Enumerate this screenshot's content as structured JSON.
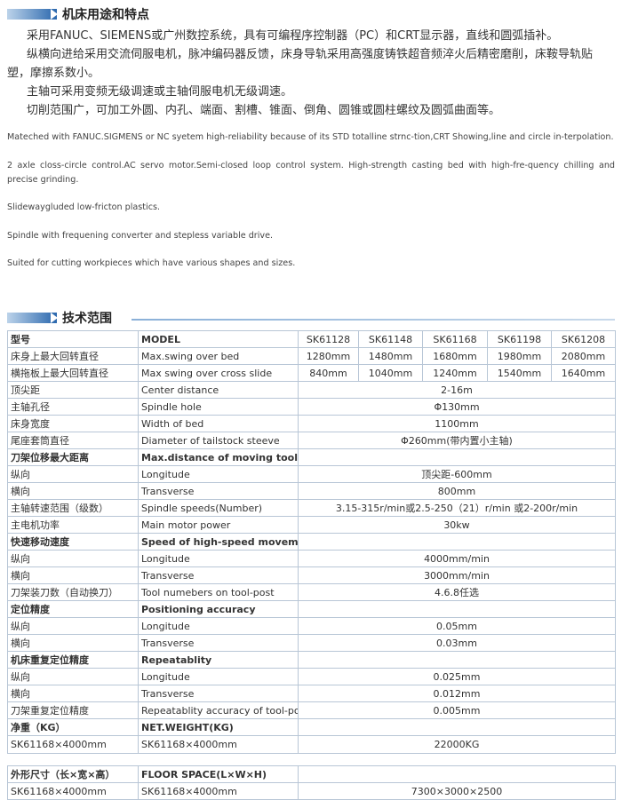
{
  "sections": [
    {
      "title": "机床用途和特点",
      "paragraphs_zh": [
        "采用FANUC、SIEMENS或广州数控系统，具有可编程序控制器（PC）和CRT显示器，直线和圆弧插补。",
        "纵横向进给采用交流伺服电机，脉冲编码器反馈，床身导轨采用高强度铸铁超音频淬火后精密磨削，床鞍导轨贴塑，摩擦系数小。",
        "主轴可采用变频无级调速或主轴伺服电机无级调速。",
        "切削范围广，可加工外圆、内孔、端面、割槽、锥面、倒角、圆锥或圆柱螺纹及圆弧曲面等。"
      ],
      "paragraphs_en": [
        "Mateched with FANUC.SIGMENS or NC syetem high-reliability because of its STD totalline strnc-tion,CRT Showing,line and circle in-terpolation.",
        "2 axle closs-circle control.AC servo motor.Semi-closed loop control system. High-strength casting bed with high-fre-quency chilling and precise grinding.",
        "Slidewaygluded low-fricton plastics.",
        "Spindle with frequening converter and stepless variable drive.",
        "Suited for cutting workpieces which have various shapes and sizes."
      ]
    },
    {
      "title": "技术范围"
    }
  ],
  "spec_table": {
    "rows": [
      {
        "bold": true,
        "cells": [
          "型号",
          "MODEL",
          "SK61128",
          "SK61148",
          "SK61168",
          "SK61198",
          "SK61208"
        ]
      },
      {
        "cells": [
          "床身上最大回转直径",
          "Max.swing over bed",
          "1280mm",
          "1480mm",
          "1680mm",
          "1980mm",
          "2080mm"
        ]
      },
      {
        "cells": [
          "横拖板上最大回转直径",
          "Max swing over cross slide",
          "840mm",
          "1040mm",
          "1240mm",
          "1540mm",
          "1640mm"
        ]
      },
      {
        "cells": [
          "顶尖距",
          "Center distance",
          "2-16m"
        ]
      },
      {
        "cells": [
          "主轴孔径",
          "Spindle hole",
          "Φ130mm"
        ]
      },
      {
        "cells": [
          "床身宽度",
          "Width of bed",
          "1100mm"
        ]
      },
      {
        "cells": [
          "尾座套筒直径",
          "Diameter of tailstock steeve",
          "Φ260mm(带内置小主轴)"
        ]
      },
      {
        "bold": true,
        "cells": [
          "刀架位移最大距离",
          "Max.distance of moving tool-post"
        ]
      },
      {
        "cells": [
          "纵向",
          "Longitude",
          "顶尖距-600mm"
        ]
      },
      {
        "cells": [
          "横向",
          "Transverse",
          "800mm"
        ]
      },
      {
        "cells": [
          "主轴转速范围（级数）",
          "Spindle speeds(Number)",
          "3.15-315r/min或2.5-250（21）r/min 或2-200r/min"
        ]
      },
      {
        "cells": [
          "主电机功率",
          "Main motor power",
          "30kw"
        ]
      },
      {
        "bold": true,
        "cells": [
          "快速移动速度",
          "Speed of high-speed movement"
        ]
      },
      {
        "cells": [
          "纵向",
          "Longitude",
          "4000mm/min"
        ]
      },
      {
        "cells": [
          "横向",
          "Transverse",
          "3000mm/min"
        ]
      },
      {
        "cells": [
          "刀架装刀数（自动换刀）",
          "Tool numebers on tool-post",
          "4.6.8任选"
        ]
      },
      {
        "bold": true,
        "cells": [
          "定位精度",
          "Positioning accuracy"
        ]
      },
      {
        "cells": [
          "纵向",
          "Longitude",
          "0.05mm"
        ]
      },
      {
        "cells": [
          "横向",
          "Transverse",
          "0.03mm"
        ]
      },
      {
        "bold": true,
        "cells": [
          "机床重复定位精度",
          "Repeatablity"
        ]
      },
      {
        "cells": [
          "纵向",
          "Longitude",
          "0.025mm"
        ]
      },
      {
        "cells": [
          "横向",
          "Transverse",
          "0.012mm"
        ]
      },
      {
        "cells": [
          "刀架重复定位精度",
          "Repeatablity accuracy of tool-post",
          "0.005mm"
        ]
      },
      {
        "bold": true,
        "cells": [
          "净重（KG）",
          "NET.WEIGHT(KG)"
        ]
      },
      {
        "cells": [
          "SK61168×4000mm",
          "SK61168×4000mm",
          "22000KG"
        ]
      }
    ]
  },
  "dimensions_table": {
    "rows": [
      {
        "bold": true,
        "cells": [
          "外形尺寸（长×宽×高）",
          "FLOOR SPACE(L×W×H)"
        ]
      },
      {
        "cells": [
          "SK61168×4000mm",
          "SK61168×4000mm",
          "7300×3000×2500"
        ]
      }
    ]
  }
}
